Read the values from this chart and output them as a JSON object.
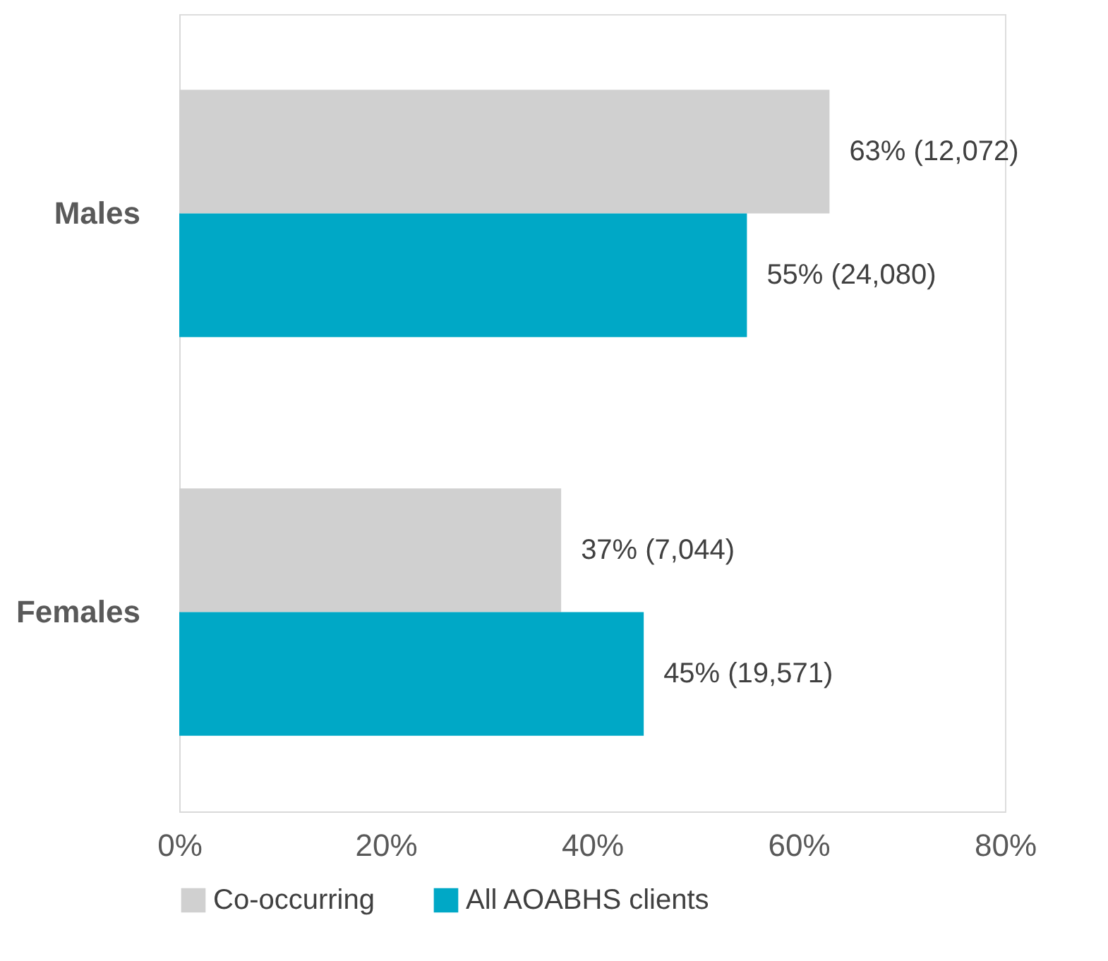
{
  "chart_data": {
    "type": "bar",
    "orientation": "horizontal",
    "categories": [
      "Males",
      "Females"
    ],
    "series": [
      {
        "name": "Co-occurring",
        "color": "#d0d0d0",
        "values": [
          63,
          37
        ],
        "value_labels": [
          "63% (12,072)",
          "37% (7,044)"
        ]
      },
      {
        "name": "All AOABHS clients",
        "color": "#00a8c6",
        "values": [
          55,
          45
        ],
        "value_labels": [
          "55% (24,080)",
          "45% (19,571)"
        ]
      }
    ],
    "xlim": [
      0,
      80
    ],
    "xticks": [
      {
        "value": 0,
        "label": "0%"
      },
      {
        "value": 20,
        "label": "20%"
      },
      {
        "value": 40,
        "label": "40%"
      },
      {
        "value": 60,
        "label": "60%"
      },
      {
        "value": 80,
        "label": "80%"
      }
    ],
    "grid": false,
    "legend": "bottom"
  }
}
